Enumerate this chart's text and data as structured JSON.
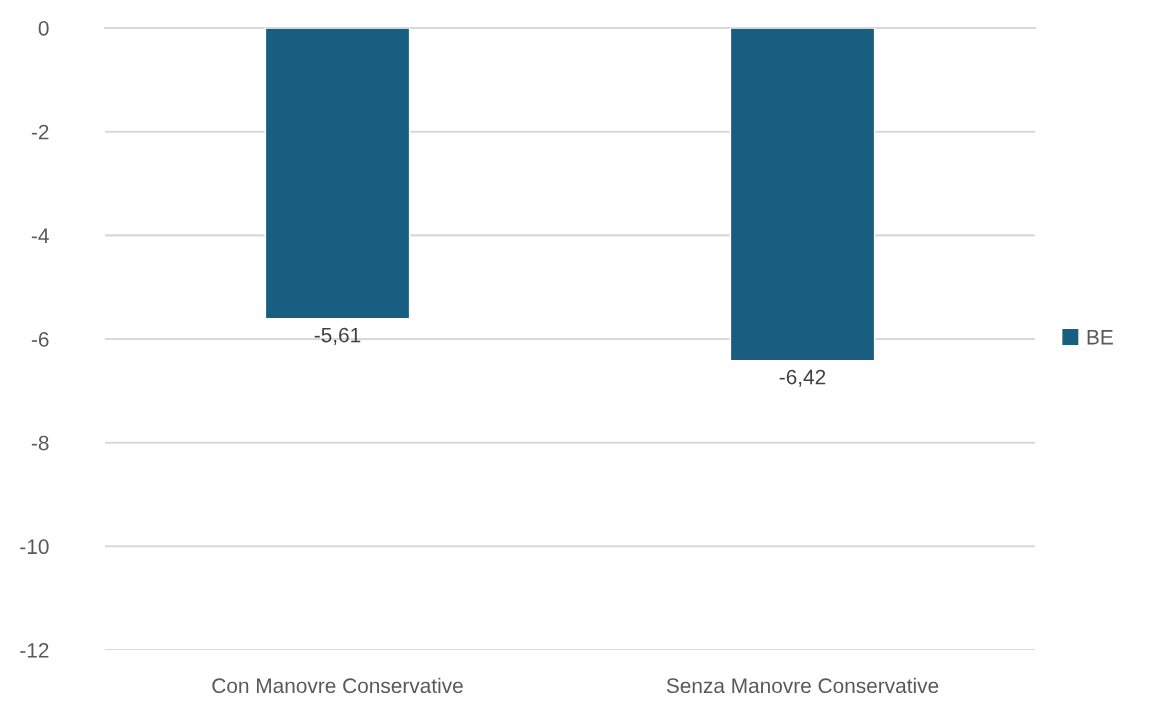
{
  "chart_data": {
    "type": "bar",
    "categories": [
      "Con Manovre Conservative",
      "Senza Manovre Conservative"
    ],
    "series": [
      {
        "name": "BE",
        "color": "#175e80",
        "values": [
          -5.61,
          -6.42
        ],
        "value_labels": [
          "-5,61",
          "-6,42"
        ]
      }
    ],
    "ylim": [
      -12,
      0
    ],
    "yticks": [
      0,
      -2,
      -4,
      -6,
      -8,
      -10,
      -12
    ],
    "grid": "y",
    "legend": "right"
  }
}
